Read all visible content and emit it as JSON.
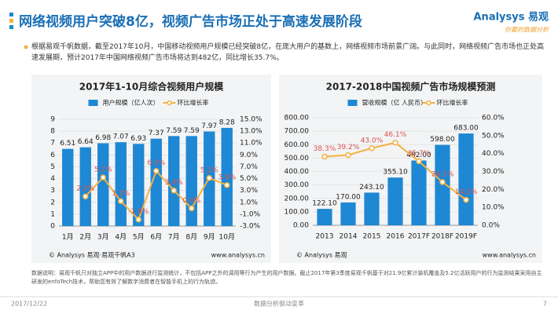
{
  "title": "网络视频用户突破8亿，视频广告市场正处于高速发展阶段",
  "logo": "Analysys 易观",
  "tagline": "你要的数据分析",
  "bullet": "根据易观千帆数据，截至2017年10月，中国移动视频用户规模已经突破8亿，在庞大用户的基数上，网络视频市场前景广阔。与此同时，网络视频广告市场也正处高速发展期，预计2017年中国网络视频广告市场将达到482亿，同比增长35.7%。",
  "note": "数据说明：易观千帆只对独立APP中的用户数据进行监测统计，不包括APP之外的调用等行为产生的用户数据。截止2017年第3季度易观千帆基于对21.9亿累计装机覆盖及5.2亿活跃用户的行为监测结果采用自主研发的enfoTech技术，帮助您有效了解数字消费者在智能手机上的行为轨迹。",
  "footer": {
    "date": "2017/12/22",
    "slogan": "数据分析驱动变革",
    "page": "7"
  },
  "chart_data": [
    {
      "type": "bar",
      "title": "2017年1-10月综合视频用户规模",
      "categories": [
        "1月",
        "2月",
        "3月",
        "4月",
        "5月",
        "6月",
        "7月",
        "8月",
        "9月",
        "10月"
      ],
      "series": [
        {
          "name": "用户规模（亿人次）",
          "color": "#1e88d4",
          "values": [
            6.51,
            6.64,
            6.98,
            7.07,
            6.93,
            7.37,
            7.59,
            7.59,
            7.97,
            8.28
          ]
        },
        {
          "name": "环比增长率",
          "type": "line",
          "axis": "y2",
          "color": "#f5b041",
          "label_color": "#d9534f",
          "values": [
            null,
            2.0,
            5.2,
            1.2,
            -1.9,
            6.3,
            3.0,
            0.0,
            5.1,
            3.9
          ],
          "value_labels": [
            null,
            "2.0%",
            "5.2%",
            "1.2%",
            "-1.9%",
            "6.3%",
            "3.0%",
            "0.0%",
            "5.1%",
            "3.9%"
          ]
        }
      ],
      "ylim": [
        0,
        9
      ],
      "yticks": [
        0,
        1,
        2,
        3,
        4,
        5,
        6,
        7,
        8,
        9
      ],
      "y2lim": [
        -3,
        15
      ],
      "y2ticks": [
        {
          "value": -3,
          "label": "-3.0%"
        },
        {
          "value": -1,
          "label": "-1.0%"
        },
        {
          "value": 1,
          "label": "1.0%"
        },
        {
          "value": 3,
          "label": "3.0%"
        },
        {
          "value": 5,
          "label": "5.0%"
        },
        {
          "value": 7,
          "label": "7.0%"
        },
        {
          "value": 9,
          "label": "9.0%"
        },
        {
          "value": 11,
          "label": "11.0%"
        },
        {
          "value": 13,
          "label": "13.0%"
        },
        {
          "value": 15,
          "label": "15.0%"
        }
      ],
      "source": "© Analysys 易观·易观千帆A3",
      "url": "www.analysys.cn"
    },
    {
      "type": "bar",
      "title": "2017-2018中国视频广告市场规模预测",
      "categories": [
        "2013",
        "2014",
        "2015",
        "2016",
        "2017F",
        "2018F",
        "2019F"
      ],
      "series": [
        {
          "name": "营收规模（亿 人民币）",
          "color": "#1e88d4",
          "values": [
            122.1,
            170,
            243.1,
            355.1,
            482,
            598,
            683
          ],
          "value_labels": [
            "122.10",
            "170.00",
            "243.10",
            "355.10",
            "482.00",
            "598.00",
            "683.00"
          ]
        },
        {
          "name": "环比增长率",
          "type": "line",
          "axis": "y2",
          "color": "#f5b041",
          "label_color": "#d9534f",
          "values": [
            38.3,
            39.2,
            43.0,
            46.1,
            35.7,
            24.1,
            14.2
          ],
          "value_labels": [
            "38.3%",
            "39.2%",
            "43.0%",
            "46.1%",
            "35.7%",
            "24.1%",
            "14.2%"
          ]
        }
      ],
      "ylim": [
        0,
        800
      ],
      "yticks": [
        {
          "value": 0,
          "label": "0.00"
        },
        {
          "value": 100,
          "label": "100.00"
        },
        {
          "value": 200,
          "label": "200.00"
        },
        {
          "value": 300,
          "label": "300.00"
        },
        {
          "value": 400,
          "label": "400.00"
        },
        {
          "value": 500,
          "label": "500.00"
        },
        {
          "value": 600,
          "label": "600.00"
        },
        {
          "value": 700,
          "label": "700.00"
        },
        {
          "value": 800,
          "label": "800.00"
        }
      ],
      "y2lim": [
        0,
        60
      ],
      "y2ticks": [
        {
          "value": 0,
          "label": "0.0%"
        },
        {
          "value": 10,
          "label": "10.0%"
        },
        {
          "value": 20,
          "label": "20.0%"
        },
        {
          "value": 30,
          "label": "30.0%"
        },
        {
          "value": 40,
          "label": "40.0%"
        },
        {
          "value": 50,
          "label": "50.0%"
        },
        {
          "value": 60,
          "label": "60.0%"
        }
      ],
      "source": "© Analysys 易观",
      "url": "www.analysys.cn"
    }
  ]
}
